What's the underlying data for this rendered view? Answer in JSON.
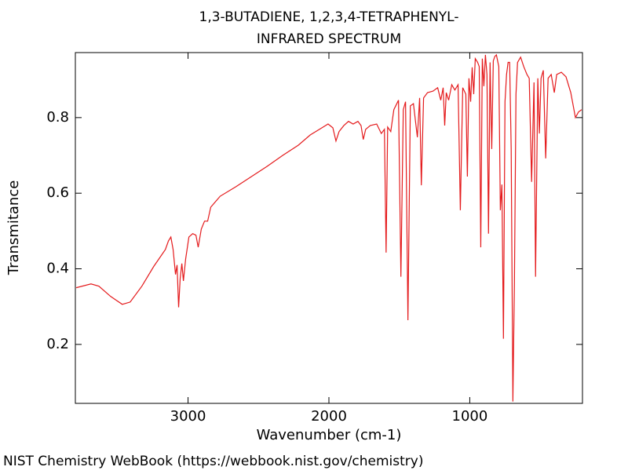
{
  "chart_data": {
    "type": "line",
    "title": "1,3-BUTADIENE, 1,2,3,4-TETRAPHENYL-",
    "subtitle": "INFRARED SPECTRUM",
    "x_label": "Wavenumber (cm-1)",
    "y_label": "Transmitance",
    "annotation": "NIST Chemistry WebBook (https://webbook.nist.gov/chemistry)",
    "xlim": [
      3800,
      200
    ],
    "ylim": [
      0.044,
      0.972
    ],
    "xticks": [
      3000,
      2000,
      1000
    ],
    "yticks": [
      0.2,
      0.4,
      0.6,
      0.8
    ],
    "grid": false,
    "series": [
      {
        "name": "spectrum",
        "color": "#e41a1c",
        "x": [
          3794,
          3689,
          3633,
          3550,
          3467,
          3411,
          3328,
          3244,
          3161,
          3139,
          3122,
          3106,
          3089,
          3078,
          3067,
          3056,
          3044,
          3033,
          3017,
          2994,
          2967,
          2944,
          2928,
          2906,
          2883,
          2861,
          2839,
          2772,
          2661,
          2550,
          2439,
          2328,
          2217,
          2133,
          2050,
          2006,
          1972,
          1950,
          1928,
          1894,
          1861,
          1828,
          1794,
          1772,
          1756,
          1739,
          1706,
          1661,
          1628,
          1606,
          1594,
          1583,
          1561,
          1539,
          1506,
          1489,
          1472,
          1456,
          1439,
          1422,
          1400,
          1372,
          1356,
          1344,
          1328,
          1300,
          1261,
          1228,
          1206,
          1189,
          1178,
          1167,
          1150,
          1128,
          1106,
          1083,
          1067,
          1050,
          1028,
          1017,
          1006,
          994,
          983,
          972,
          961,
          944,
          933,
          922,
          911,
          900,
          889,
          878,
          867,
          856,
          844,
          833,
          822,
          811,
          794,
          783,
          772,
          761,
          750,
          739,
          728,
          717,
          706,
          694,
          683,
          672,
          661,
          639,
          617,
          594,
          578,
          561,
          544,
          533,
          517,
          506,
          494,
          478,
          461,
          444,
          422,
          400,
          383,
          350,
          317,
          283,
          250,
          228,
          206
        ],
        "values": [
          0.35,
          0.36,
          0.354,
          0.327,
          0.306,
          0.312,
          0.354,
          0.406,
          0.451,
          0.474,
          0.484,
          0.451,
          0.385,
          0.41,
          0.298,
          0.374,
          0.414,
          0.368,
          0.426,
          0.484,
          0.493,
          0.489,
          0.457,
          0.505,
          0.526,
          0.526,
          0.563,
          0.592,
          0.617,
          0.644,
          0.671,
          0.7,
          0.727,
          0.754,
          0.773,
          0.783,
          0.773,
          0.738,
          0.763,
          0.779,
          0.79,
          0.783,
          0.79,
          0.779,
          0.742,
          0.769,
          0.779,
          0.783,
          0.758,
          0.769,
          0.443,
          0.775,
          0.763,
          0.821,
          0.846,
          0.379,
          0.821,
          0.842,
          0.264,
          0.831,
          0.837,
          0.748,
          0.852,
          0.621,
          0.852,
          0.866,
          0.87,
          0.879,
          0.846,
          0.879,
          0.779,
          0.866,
          0.846,
          0.887,
          0.873,
          0.887,
          0.555,
          0.879,
          0.862,
          0.644,
          0.904,
          0.842,
          0.933,
          0.862,
          0.956,
          0.946,
          0.935,
          0.457,
          0.956,
          0.883,
          0.966,
          0.914,
          0.493,
          0.946,
          0.717,
          0.95,
          0.962,
          0.966,
          0.935,
          0.555,
          0.623,
          0.215,
          0.842,
          0.914,
          0.946,
          0.946,
          0.717,
          0.049,
          0.364,
          0.862,
          0.946,
          0.96,
          0.935,
          0.914,
          0.904,
          0.63,
          0.893,
          0.379,
          0.904,
          0.758,
          0.904,
          0.925,
          0.692,
          0.904,
          0.914,
          0.866,
          0.914,
          0.92,
          0.908,
          0.866,
          0.8,
          0.815,
          0.821
        ]
      }
    ]
  }
}
